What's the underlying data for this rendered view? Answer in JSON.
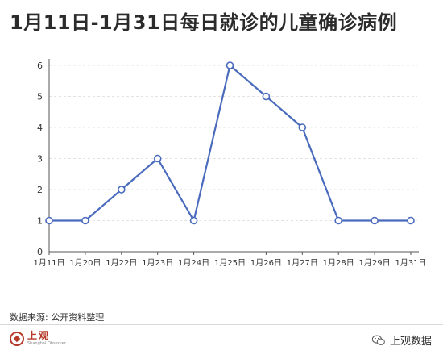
{
  "title": "1月11日-1月31日每日就诊的儿童确诊病例",
  "source": "数据来源: 公开资料整理",
  "brand": {
    "left_logo_cn": "上观",
    "left_logo_en": "Shanghai Observer",
    "right_logo_text": "上观数据",
    "right_icon": "wechat-icon"
  },
  "colors": {
    "line": "#4a6bbd",
    "grid": "#e3e3e3",
    "axis": "#555555"
  },
  "chart_data": {
    "type": "line",
    "categories": [
      "1月11日",
      "1月20日",
      "1月22日",
      "1月23日",
      "1月24日",
      "1月25日",
      "1月26日",
      "1月27日",
      "1月28日",
      "1月29日",
      "1月31日"
    ],
    "series": [
      {
        "values": [
          1,
          1,
          2,
          3,
          1,
          6,
          5,
          4,
          1,
          1,
          1
        ]
      }
    ],
    "ylim": [
      0,
      6
    ],
    "yticks": [
      0,
      1,
      2,
      3,
      4,
      5,
      6
    ],
    "grid": true,
    "markers": "open-circle"
  }
}
